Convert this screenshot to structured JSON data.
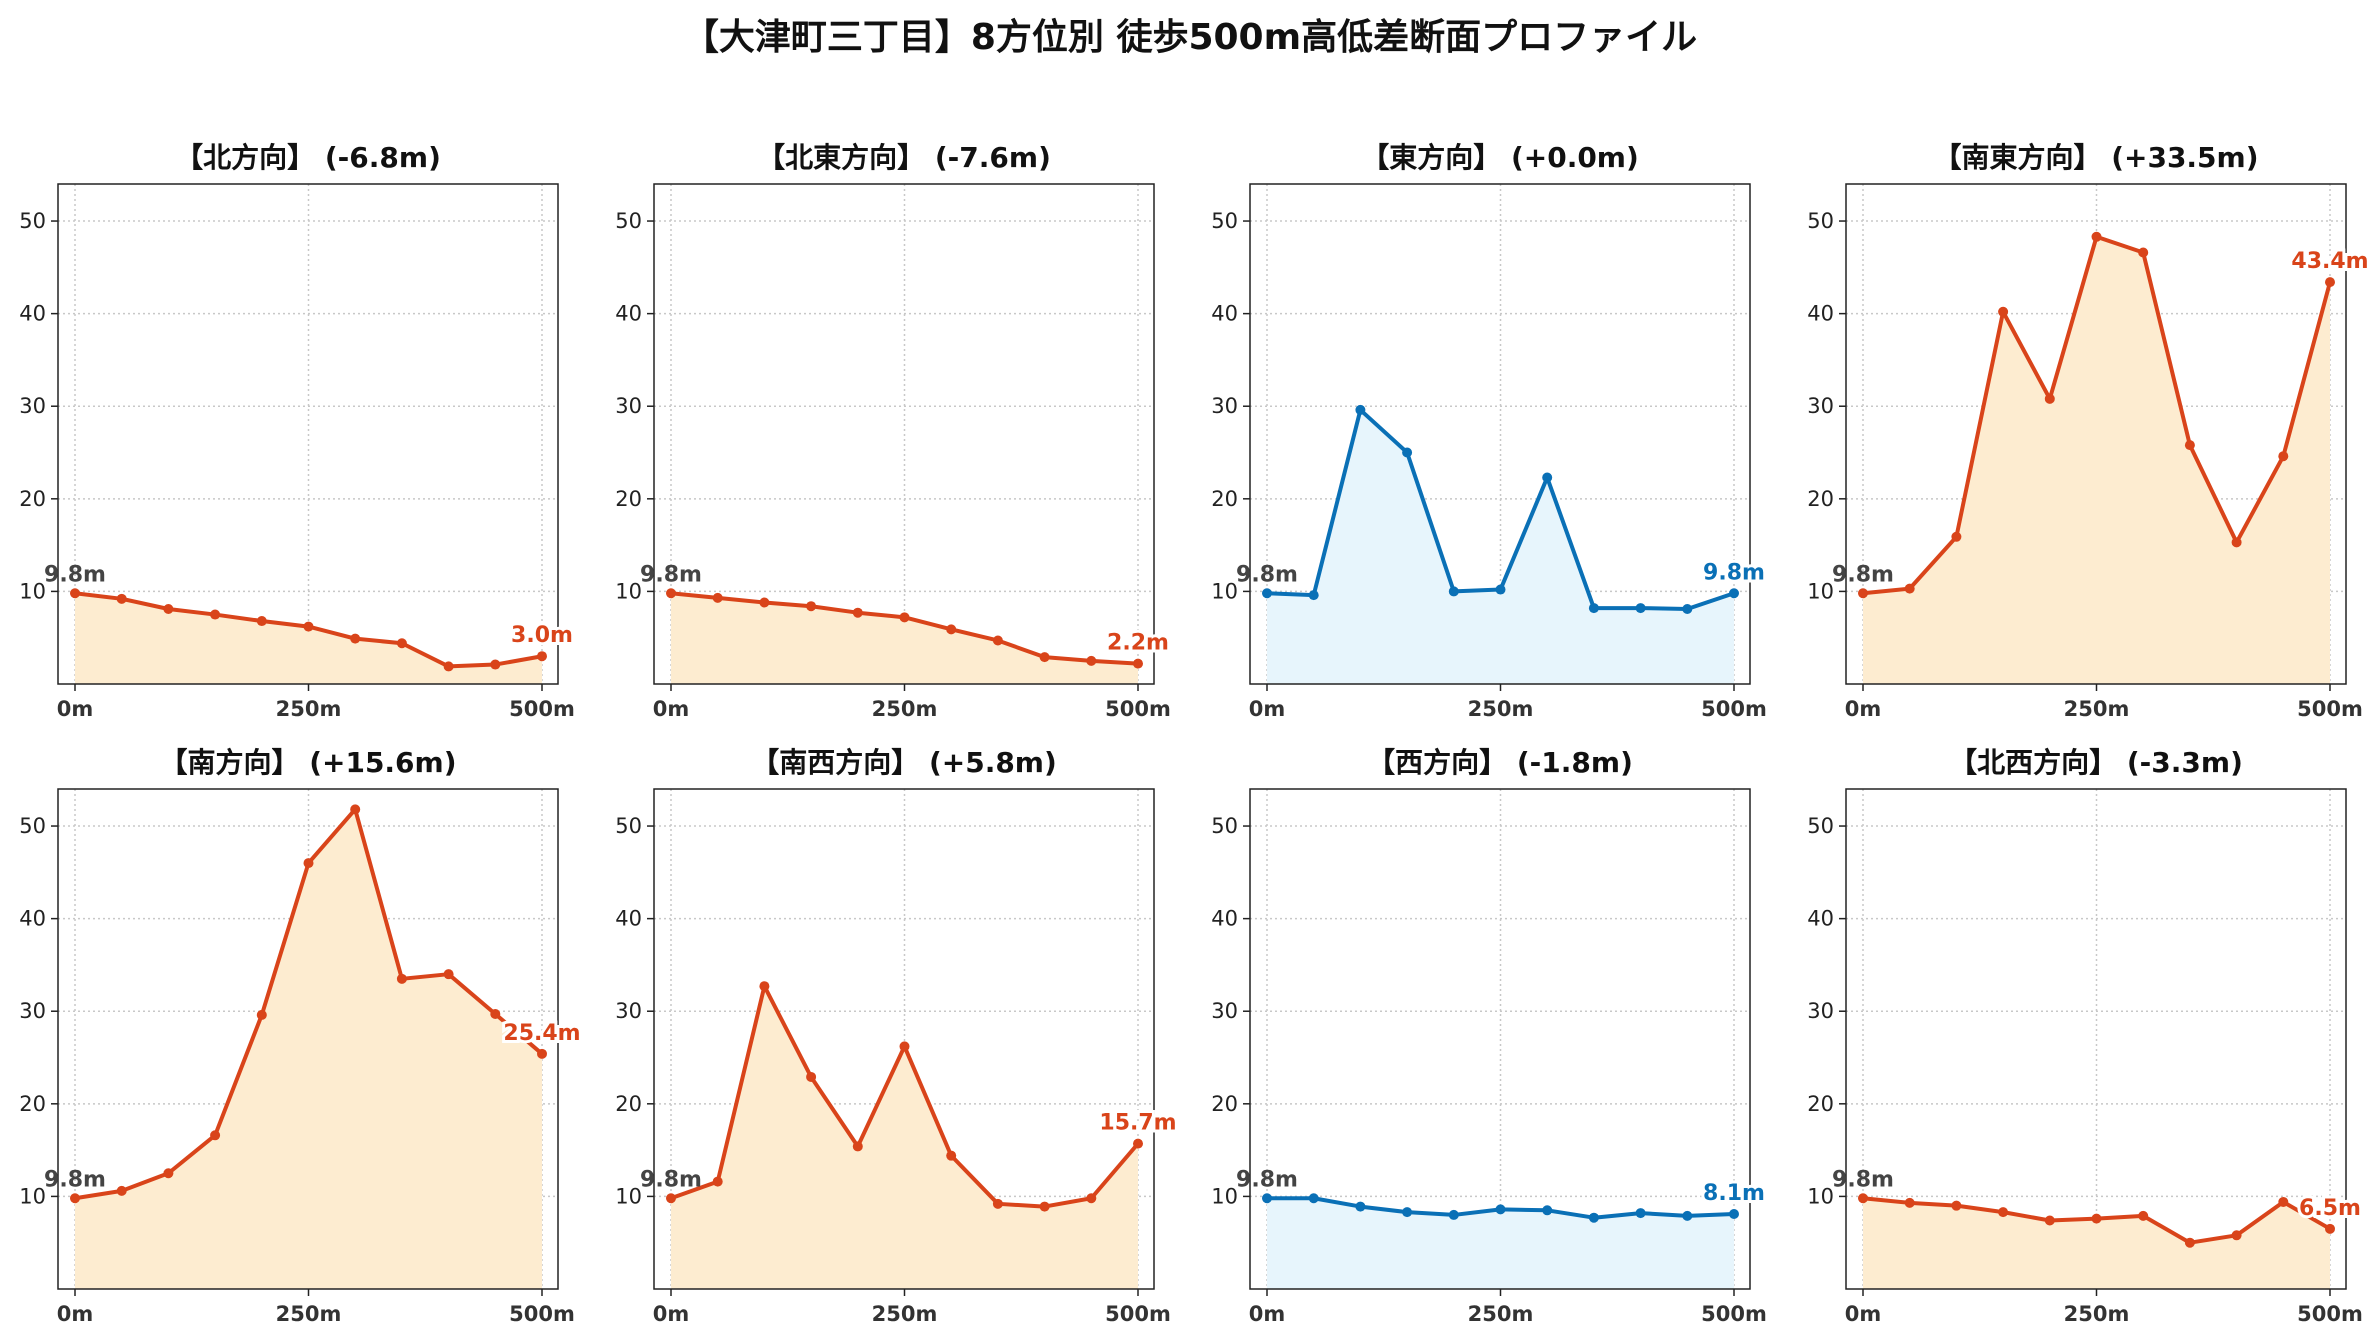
{
  "title": "【大津町三丁目】8方位別 徒歩500m高低差断面プロファイル",
  "colors": {
    "up": "#d9441a",
    "upFill": "#fdecd0",
    "flat": "#0a70b6",
    "flatFill": "#e7f5fc",
    "startLabel": "#444444"
  },
  "chart_data": [
    {
      "type": "area",
      "title": "【北方向】 (-6.8m)",
      "trend": "up",
      "x": [
        0,
        50,
        100,
        150,
        200,
        250,
        300,
        350,
        400,
        450,
        500
      ],
      "y": [
        9.8,
        9.2,
        8.1,
        7.5,
        6.8,
        6.2,
        4.9,
        4.4,
        1.9,
        2.1,
        3.0
      ],
      "x_ticks": [
        "0m",
        "250m",
        "500m"
      ],
      "y_ticks": [
        10,
        20,
        30,
        40,
        50
      ],
      "ylim": [
        0,
        54
      ],
      "start_label": "9.8m",
      "end_label": "3.0m",
      "grid": true
    },
    {
      "type": "area",
      "title": "【北東方向】 (-7.6m)",
      "trend": "up",
      "x": [
        0,
        50,
        100,
        150,
        200,
        250,
        300,
        350,
        400,
        450,
        500
      ],
      "y": [
        9.8,
        9.3,
        8.8,
        8.4,
        7.7,
        7.2,
        5.9,
        4.7,
        2.9,
        2.5,
        2.2
      ],
      "x_ticks": [
        "0m",
        "250m",
        "500m"
      ],
      "y_ticks": [
        10,
        20,
        30,
        40,
        50
      ],
      "ylim": [
        0,
        54
      ],
      "start_label": "9.8m",
      "end_label": "2.2m",
      "grid": true
    },
    {
      "type": "area",
      "title": "【東方向】 (+0.0m)",
      "trend": "flat",
      "x": [
        0,
        50,
        100,
        150,
        200,
        250,
        300,
        350,
        400,
        450,
        500
      ],
      "y": [
        9.8,
        9.6,
        29.6,
        25.0,
        10.0,
        10.2,
        22.3,
        8.2,
        8.2,
        8.1,
        9.8
      ],
      "x_ticks": [
        "0m",
        "250m",
        "500m"
      ],
      "y_ticks": [
        10,
        20,
        30,
        40,
        50
      ],
      "ylim": [
        0,
        54
      ],
      "start_label": "9.8m",
      "end_label": "9.8m",
      "grid": true
    },
    {
      "type": "area",
      "title": "【南東方向】 (+33.5m)",
      "trend": "up",
      "x": [
        0,
        50,
        100,
        150,
        200,
        250,
        300,
        350,
        400,
        450,
        500
      ],
      "y": [
        9.8,
        10.3,
        15.9,
        40.2,
        30.8,
        48.3,
        46.6,
        25.8,
        15.3,
        24.6,
        43.4
      ],
      "x_ticks": [
        "0m",
        "250m",
        "500m"
      ],
      "y_ticks": [
        10,
        20,
        30,
        40,
        50
      ],
      "ylim": [
        0,
        54
      ],
      "start_label": "9.8m",
      "end_label": "43.4m",
      "grid": true
    },
    {
      "type": "area",
      "title": "【南方向】 (+15.6m)",
      "trend": "up",
      "x": [
        0,
        50,
        100,
        150,
        200,
        250,
        300,
        350,
        400,
        450,
        500
      ],
      "y": [
        9.8,
        10.6,
        12.5,
        16.6,
        29.6,
        46.0,
        51.8,
        33.5,
        34.0,
        29.7,
        25.4
      ],
      "x_ticks": [
        "0m",
        "250m",
        "500m"
      ],
      "y_ticks": [
        10,
        20,
        30,
        40,
        50
      ],
      "ylim": [
        0,
        54
      ],
      "start_label": "9.8m",
      "end_label": "25.4m",
      "grid": true
    },
    {
      "type": "area",
      "title": "【南西方向】 (+5.8m)",
      "trend": "up",
      "x": [
        0,
        50,
        100,
        150,
        200,
        250,
        300,
        350,
        400,
        450,
        500
      ],
      "y": [
        9.8,
        11.6,
        32.7,
        22.9,
        15.4,
        26.2,
        14.4,
        9.2,
        8.9,
        9.8,
        15.7
      ],
      "x_ticks": [
        "0m",
        "250m",
        "500m"
      ],
      "y_ticks": [
        10,
        20,
        30,
        40,
        50
      ],
      "ylim": [
        0,
        54
      ],
      "start_label": "9.8m",
      "end_label": "15.7m",
      "grid": true
    },
    {
      "type": "area",
      "title": "【西方向】 (-1.8m)",
      "trend": "flat",
      "x": [
        0,
        50,
        100,
        150,
        200,
        250,
        300,
        350,
        400,
        450,
        500
      ],
      "y": [
        9.8,
        9.8,
        8.9,
        8.3,
        8.0,
        8.6,
        8.5,
        7.7,
        8.2,
        7.9,
        8.1
      ],
      "x_ticks": [
        "0m",
        "250m",
        "500m"
      ],
      "y_ticks": [
        10,
        20,
        30,
        40,
        50
      ],
      "ylim": [
        0,
        54
      ],
      "start_label": "9.8m",
      "end_label": "8.1m",
      "grid": true
    },
    {
      "type": "area",
      "title": "【北西方向】 (-3.3m)",
      "trend": "up",
      "x": [
        0,
        50,
        100,
        150,
        200,
        250,
        300,
        350,
        400,
        450,
        500
      ],
      "y": [
        9.8,
        9.3,
        9.0,
        8.3,
        7.4,
        7.6,
        7.9,
        5.0,
        5.8,
        9.4,
        6.5
      ],
      "x_ticks": [
        "0m",
        "250m",
        "500m"
      ],
      "y_ticks": [
        10,
        20,
        30,
        40,
        50
      ],
      "ylim": [
        0,
        54
      ],
      "start_label": "9.8m",
      "end_label": "6.5m",
      "grid": true
    }
  ]
}
